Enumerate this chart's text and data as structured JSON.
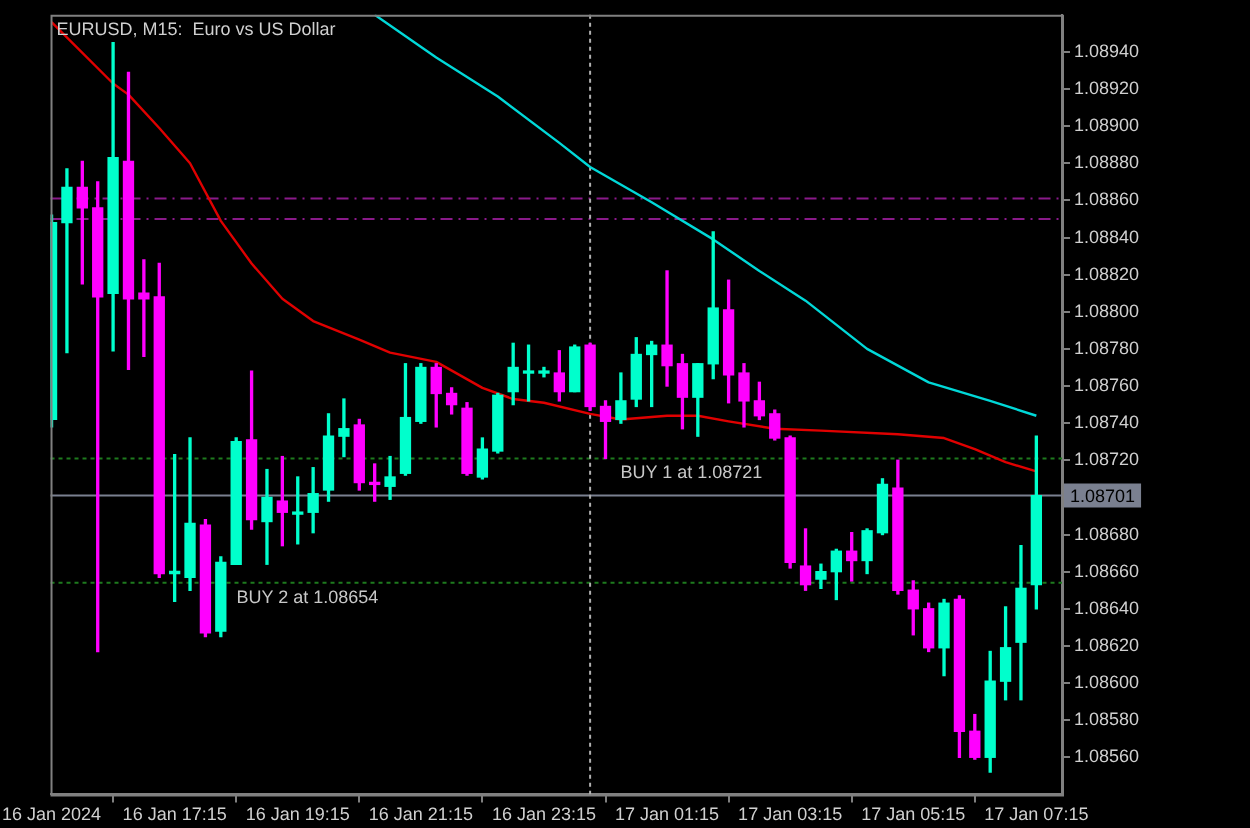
{
  "chart_data": {
    "type": "candlestick",
    "title": "EURUSD, M15:  Euro vs US Dollar",
    "x": [
      "2024-01-16T15:15",
      "2024-01-16T15:30",
      "2024-01-16T15:45",
      "2024-01-16T16:00",
      "2024-01-16T16:15",
      "2024-01-16T16:30",
      "2024-01-16T16:45",
      "2024-01-16T17:00",
      "2024-01-16T17:15",
      "2024-01-16T17:30",
      "2024-01-16T17:45",
      "2024-01-16T18:00",
      "2024-01-16T18:15",
      "2024-01-16T18:30",
      "2024-01-16T18:45",
      "2024-01-16T19:00",
      "2024-01-16T19:15",
      "2024-01-16T19:30",
      "2024-01-16T19:45",
      "2024-01-16T20:00",
      "2024-01-16T20:15",
      "2024-01-16T20:30",
      "2024-01-16T20:45",
      "2024-01-16T21:00",
      "2024-01-16T21:15",
      "2024-01-16T21:30",
      "2024-01-16T21:45",
      "2024-01-16T22:00",
      "2024-01-16T22:15",
      "2024-01-16T22:30",
      "2024-01-16T22:45",
      "2024-01-16T23:00",
      "2024-01-16T23:15",
      "2024-01-16T23:30",
      "2024-01-16T23:45",
      "2024-01-17T00:00",
      "2024-01-17T00:15",
      "2024-01-17T00:30",
      "2024-01-17T00:45",
      "2024-01-17T01:00",
      "2024-01-17T01:15",
      "2024-01-17T01:30",
      "2024-01-17T01:45",
      "2024-01-17T02:00",
      "2024-01-17T02:15",
      "2024-01-17T02:30",
      "2024-01-17T02:45",
      "2024-01-17T03:00",
      "2024-01-17T03:15",
      "2024-01-17T03:30",
      "2024-01-17T03:45",
      "2024-01-17T04:00",
      "2024-01-17T04:15",
      "2024-01-17T04:30",
      "2024-01-17T04:45",
      "2024-01-17T05:00",
      "2024-01-17T05:15",
      "2024-01-17T05:30",
      "2024-01-17T05:45",
      "2024-01-17T06:00",
      "2024-01-17T06:15",
      "2024-01-17T06:30",
      "2024-01-17T06:45",
      "2024-01-17T07:00",
      "2024-01-17T07:15"
    ],
    "ohlc": [
      [
        1.08742,
        1.08852,
        1.08738,
        1.08848
      ],
      [
        1.08848,
        1.08877,
        1.08778,
        1.08867
      ],
      [
        1.08867,
        1.08881,
        1.08815,
        1.08856
      ],
      [
        1.08856,
        1.0887,
        1.08617,
        1.08808
      ],
      [
        1.0881,
        1.08945,
        1.08779,
        1.08883
      ],
      [
        1.08881,
        1.08929,
        1.08769,
        1.08807
      ],
      [
        1.0881,
        1.08828,
        1.08776,
        1.08807
      ],
      [
        1.08808,
        1.08826,
        1.08657,
        1.08659
      ],
      [
        1.08659,
        1.08723,
        1.08644,
        1.0866
      ],
      [
        1.08657,
        1.08732,
        1.0865,
        1.08686
      ],
      [
        1.08685,
        1.08688,
        1.08625,
        1.08627
      ],
      [
        1.08628,
        1.08668,
        1.08625,
        1.08665
      ],
      [
        1.08664,
        1.08732,
        1.08664,
        1.0873
      ],
      [
        1.08731,
        1.08768,
        1.08683,
        1.08688
      ],
      [
        1.08687,
        1.08715,
        1.08664,
        1.087
      ],
      [
        1.08698,
        1.08722,
        1.08674,
        1.08692
      ],
      [
        1.08691,
        1.08711,
        1.08675,
        1.08692
      ],
      [
        1.08692,
        1.08716,
        1.08681,
        1.08702
      ],
      [
        1.08704,
        1.08745,
        1.08698,
        1.08733
      ],
      [
        1.08733,
        1.08753,
        1.08722,
        1.08737
      ],
      [
        1.08739,
        1.08742,
        1.08704,
        1.08708
      ],
      [
        1.08708,
        1.08718,
        1.08698,
        1.08707
      ],
      [
        1.08706,
        1.08722,
        1.08699,
        1.08711
      ],
      [
        1.08713,
        1.08772,
        1.08712,
        1.08743
      ],
      [
        1.08741,
        1.08772,
        1.0874,
        1.0877
      ],
      [
        1.0877,
        1.08772,
        1.08738,
        1.08756
      ],
      [
        1.08756,
        1.08759,
        1.08745,
        1.0875
      ],
      [
        1.08748,
        1.08751,
        1.08712,
        1.08713
      ],
      [
        1.08711,
        1.08732,
        1.0871,
        1.08726
      ],
      [
        1.08725,
        1.08756,
        1.08724,
        1.08755
      ],
      [
        1.08757,
        1.08783,
        1.0875,
        1.0877
      ],
      [
        1.08767,
        1.08782,
        1.08752,
        1.08768
      ],
      [
        1.08767,
        1.0877,
        1.08765,
        1.08767
      ],
      [
        1.08767,
        1.08779,
        1.08752,
        1.08757
      ],
      [
        1.08757,
        1.08782,
        1.08757,
        1.08781
      ],
      [
        1.08782,
        1.08783,
        1.08747,
        1.08749
      ],
      [
        1.08749,
        1.08752,
        1.08721,
        1.08741
      ],
      [
        1.08742,
        1.08767,
        1.0874,
        1.08752
      ],
      [
        1.08753,
        1.08786,
        1.08749,
        1.08777
      ],
      [
        1.08777,
        1.08784,
        1.08749,
        1.08782
      ],
      [
        1.08782,
        1.08822,
        1.0876,
        1.08771
      ],
      [
        1.08772,
        1.08777,
        1.08737,
        1.08754
      ],
      [
        1.08754,
        1.08772,
        1.08733,
        1.08772
      ],
      [
        1.08772,
        1.08843,
        1.08764,
        1.08802
      ],
      [
        1.08801,
        1.08817,
        1.08751,
        1.08766
      ],
      [
        1.08767,
        1.08772,
        1.08738,
        1.08752
      ],
      [
        1.08752,
        1.08762,
        1.08742,
        1.08744
      ],
      [
        1.08745,
        1.08747,
        1.08731,
        1.08732
      ],
      [
        1.08732,
        1.08733,
        1.08662,
        1.08665
      ],
      [
        1.08663,
        1.08683,
        1.0865,
        1.08653
      ],
      [
        1.08656,
        1.08664,
        1.08651,
        1.0866
      ],
      [
        1.0866,
        1.08672,
        1.08645,
        1.08671
      ],
      [
        1.08671,
        1.08681,
        1.08655,
        1.08666
      ],
      [
        1.08666,
        1.08683,
        1.08659,
        1.08682
      ],
      [
        1.08681,
        1.0871,
        1.0868,
        1.08707
      ],
      [
        1.08705,
        1.0872,
        1.08648,
        1.0865
      ],
      [
        1.0865,
        1.08655,
        1.08626,
        1.0864
      ],
      [
        1.0864,
        1.08643,
        1.08617,
        1.08619
      ],
      [
        1.08619,
        1.08645,
        1.08604,
        1.08643
      ],
      [
        1.08645,
        1.08647,
        1.0856,
        1.08574
      ],
      [
        1.08574,
        1.08583,
        1.08559,
        1.0856
      ],
      [
        1.0856,
        1.08617,
        1.08552,
        1.08601
      ],
      [
        1.08601,
        1.08641,
        1.08591,
        1.08619
      ],
      [
        1.08622,
        1.08674,
        1.08591,
        1.08651
      ],
      [
        1.08653,
        1.08733,
        1.0864,
        1.08701
      ]
    ],
    "colors": [
      "#00ffcc",
      "#00ffcc",
      "#ff00ff",
      "#ff00ff",
      "#00ffcc",
      "#ff00ff",
      "#ff00ff",
      "#ff00ff",
      "#00ffcc",
      "#00ffcc",
      "#ff00ff",
      "#00ffcc",
      "#00ffcc",
      "#ff00ff",
      "#00ffcc",
      "#ff00ff",
      "#00ffcc",
      "#00ffcc",
      "#00ffcc",
      "#00ffcc",
      "#ff00ff",
      "#ff00ff",
      "#00ffcc",
      "#00ffcc",
      "#00ffcc",
      "#ff00ff",
      "#ff00ff",
      "#ff00ff",
      "#00ffcc",
      "#00ffcc",
      "#00ffcc",
      "#00ffcc",
      "#00ffcc",
      "#ff00ff",
      "#00ffcc",
      "#ff00ff",
      "#ff00ff",
      "#00ffcc",
      "#00ffcc",
      "#00ffcc",
      "#ff00ff",
      "#ff00ff",
      "#00ffcc",
      "#00ffcc",
      "#ff00ff",
      "#ff00ff",
      "#ff00ff",
      "#ff00ff",
      "#ff00ff",
      "#ff00ff",
      "#00ffcc",
      "#00ffcc",
      "#ff00ff",
      "#00ffcc",
      "#00ffcc",
      "#ff00ff",
      "#ff00ff",
      "#ff00ff",
      "#00ffcc",
      "#ff00ff",
      "#ff00ff",
      "#00ffcc",
      "#00ffcc",
      "#00ffcc",
      "#00ffcc"
    ],
    "series": [
      {
        "type": "line",
        "color": "#e00000",
        "x": [
          "2024-01-16T15:15",
          "2024-01-16T16:15",
          "2024-01-16T16:30",
          "2024-01-16T17:00",
          "2024-01-16T17:30",
          "2024-01-16T18:00",
          "2024-01-16T18:30",
          "2024-01-16T19:00",
          "2024-01-16T19:30",
          "2024-01-16T20:15",
          "2024-01-16T20:45",
          "2024-01-16T21:30",
          "2024-01-16T22:15",
          "2024-01-16T22:45",
          "2024-01-16T23:15",
          "2024-01-17T00:00",
          "2024-01-17T00:30",
          "2024-01-17T01:15",
          "2024-01-17T01:45",
          "2024-01-17T02:15",
          "2024-01-17T03:00",
          "2024-01-17T03:45",
          "2024-01-17T05:00",
          "2024-01-17T05:45",
          "2024-01-17T06:15",
          "2024-01-17T06:45",
          "2024-01-17T07:15"
        ],
        "values": [
          1.08956,
          1.08923,
          1.08917,
          1.08899,
          1.0888,
          1.08849,
          1.08826,
          1.08807,
          1.08795,
          1.08785,
          1.08778,
          1.08773,
          1.08759,
          1.08753,
          1.08751,
          1.08745,
          1.08742,
          1.08744,
          1.08744,
          1.08741,
          1.08737,
          1.08736,
          1.08734,
          1.08732,
          1.08726,
          1.08719,
          1.08714
        ]
      },
      {
        "type": "line",
        "color": "#00d8d8",
        "x": [
          "2024-01-16T20:30",
          "2024-01-16T21:30",
          "2024-01-16T22:30",
          "2024-01-16T23:30",
          "2024-01-17T00:00",
          "2024-01-17T01:00",
          "2024-01-17T02:00",
          "2024-01-17T02:45",
          "2024-01-17T03:30",
          "2024-01-17T04:30",
          "2024-01-17T05:30",
          "2024-01-17T06:30",
          "2024-01-17T07:15"
        ],
        "values": [
          1.0896,
          1.08937,
          1.08916,
          1.08891,
          1.08878,
          1.08859,
          1.08839,
          1.08822,
          1.08806,
          1.0878,
          1.08762,
          1.08752,
          1.08744
        ]
      }
    ],
    "xlim": [
      "2024-01-16T15:14",
      "2024-01-17T07:40"
    ],
    "xticks": [
      {
        "value": "2024-01-16T15:15",
        "label": "16 Jan 2024"
      },
      {
        "value": "2024-01-16T17:15",
        "label": "16 Jan 17:15"
      },
      {
        "value": "2024-01-16T19:15",
        "label": "16 Jan 19:15"
      },
      {
        "value": "2024-01-16T21:15",
        "label": "16 Jan 21:15"
      },
      {
        "value": "2024-01-16T23:15",
        "label": "16 Jan 23:15"
      },
      {
        "value": "2024-01-17T01:15",
        "label": "17 Jan 01:15"
      },
      {
        "value": "2024-01-17T03:15",
        "label": "17 Jan 03:15"
      },
      {
        "value": "2024-01-17T05:15",
        "label": "17 Jan 05:15"
      },
      {
        "value": "2024-01-17T07:15",
        "label": "17 Jan 07:15"
      }
    ],
    "ylim": [
      1.0854,
      1.0896
    ],
    "yticks": [
      {
        "value": 1.0856,
        "label": "1.08560"
      },
      {
        "value": 1.0858,
        "label": "1.08580"
      },
      {
        "value": 1.086,
        "label": "1.08600"
      },
      {
        "value": 1.0862,
        "label": "1.08620"
      },
      {
        "value": 1.0864,
        "label": "1.08640"
      },
      {
        "value": 1.0866,
        "label": "1.08660"
      },
      {
        "value": 1.0868,
        "label": "1.08680"
      },
      {
        "value": 1.0872,
        "label": "1.08720"
      },
      {
        "value": 1.0874,
        "label": "1.08740"
      },
      {
        "value": 1.0876,
        "label": "1.08760"
      },
      {
        "value": 1.0878,
        "label": "1.08780"
      },
      {
        "value": 1.088,
        "label": "1.08800"
      },
      {
        "value": 1.0882,
        "label": "1.08820"
      },
      {
        "value": 1.0884,
        "label": "1.08840"
      },
      {
        "value": 1.0886,
        "label": "1.08860"
      },
      {
        "value": 1.0888,
        "label": "1.08880"
      },
      {
        "value": 1.089,
        "label": "1.08900"
      },
      {
        "value": 1.0892,
        "label": "1.08920"
      },
      {
        "value": 1.0894,
        "label": "1.08940"
      }
    ],
    "ref_lines": [
      {
        "axis": "y",
        "value": 1.08721,
        "label": "BUY 1 at 1.08721",
        "color": "#1e7a1e",
        "line_style": "dotted"
      },
      {
        "axis": "y",
        "value": 1.08654,
        "label": "BUY 2 at 1.08654",
        "color": "#1e7a1e",
        "line_style": "dotted"
      },
      {
        "axis": "y",
        "value": 1.08701,
        "label": "1.08701",
        "color": "#7a8090",
        "line_style": "solid"
      },
      {
        "axis": "y",
        "value": 1.08861,
        "color": "#8a1a8a",
        "line_style": "dashed"
      },
      {
        "axis": "y",
        "value": 1.0885,
        "color": "#8a1a8a",
        "line_style": "dashed"
      },
      {
        "axis": "x",
        "value": "2024-01-17T00:00",
        "color": "#b0b0b0",
        "line_style": "dotted"
      }
    ]
  }
}
